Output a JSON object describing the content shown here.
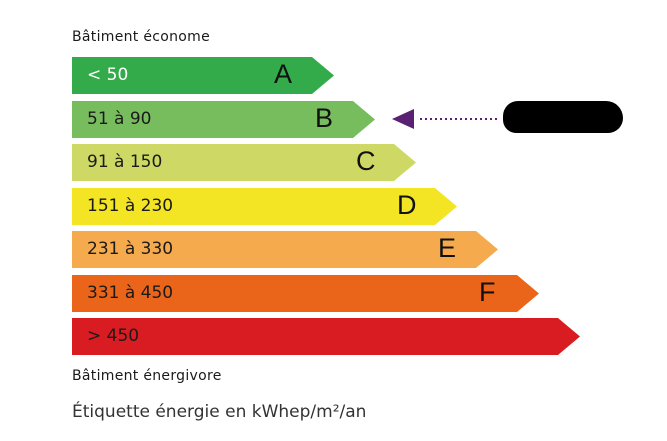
{
  "top_caption": "Bâtiment économe",
  "bottom_caption": "Bâtiment énergivore",
  "unit_label": "Étiquette énergie en kWhep/m²/an",
  "classes": [
    {
      "range": "< 50",
      "letter": "A",
      "color": "#33ab4a",
      "text_color": "#ffffff"
    },
    {
      "range": "51 à 90",
      "letter": "B",
      "color": "#78bd5d",
      "text_color": "#1a1a1a"
    },
    {
      "range": "91 à 150",
      "letter": "C",
      "color": "#cdd964",
      "text_color": "#1a1a1a"
    },
    {
      "range": "151 à 230",
      "letter": "D",
      "color": "#f3e523",
      "text_color": "#1a1a1a"
    },
    {
      "range": "231 à 330",
      "letter": "E",
      "color": "#f5aa4d",
      "text_color": "#1a1a1a"
    },
    {
      "range": "331 à 450",
      "letter": "F",
      "color": "#ea6519",
      "text_color": "#1a1a1a"
    },
    {
      "range": "> 450",
      "letter": "",
      "color": "#d91c22",
      "text_color": "#1a1a1a"
    }
  ],
  "indicator": {
    "class": "B",
    "color": "#5a2173",
    "label_redacted": true
  }
}
